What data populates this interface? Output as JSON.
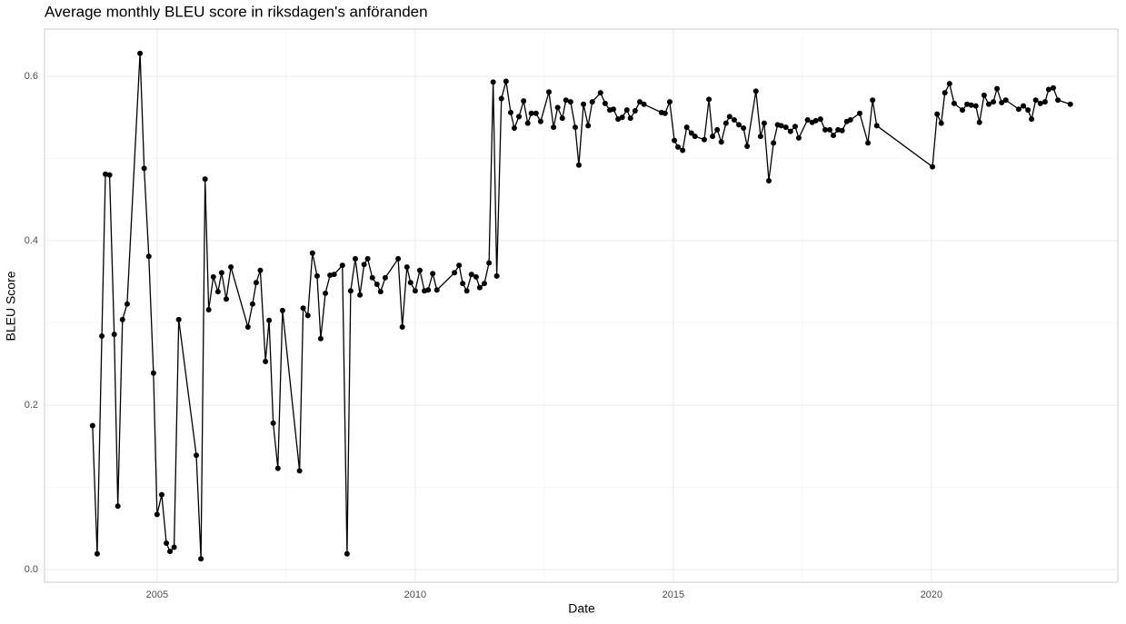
{
  "chart_data": {
    "type": "line",
    "title": "Average monthly BLEU score in riksdagen's anföranden",
    "xlabel": "Date",
    "ylabel": "BLEU Score",
    "color": "#000000",
    "grid": true,
    "xlim": [
      2002.82,
      2023.61
    ],
    "ylim": [
      -0.0155,
      0.6575
    ],
    "xticks": [
      2005,
      2010,
      2015,
      2020
    ],
    "yticks": [
      {
        "value": 0,
        "label": "0.0"
      },
      0.2,
      0.4,
      0.6
    ],
    "x": [
      2003.75,
      2003.84,
      2003.93,
      2004.0,
      2004.08,
      2004.17,
      2004.24,
      2004.33,
      2004.42,
      2004.67,
      2004.75,
      2004.84,
      2004.93,
      2005.0,
      2005.09,
      2005.18,
      2005.25,
      2005.33,
      2005.42,
      2005.76,
      2005.85,
      2005.93,
      2006.0,
      2006.09,
      2006.18,
      2006.25,
      2006.34,
      2006.43,
      2006.76,
      2006.85,
      2006.92,
      2007.0,
      2007.1,
      2007.17,
      2007.25,
      2007.34,
      2007.43,
      2007.76,
      2007.83,
      2007.92,
      2008.01,
      2008.1,
      2008.17,
      2008.26,
      2008.35,
      2008.43,
      2008.59,
      2008.68,
      2008.75,
      2008.84,
      2008.93,
      2009.01,
      2009.08,
      2009.17,
      2009.26,
      2009.33,
      2009.42,
      2009.67,
      2009.75,
      2009.84,
      2009.91,
      2010.0,
      2010.09,
      2010.18,
      2010.25,
      2010.34,
      2010.42,
      2010.76,
      2010.85,
      2010.92,
      2011.0,
      2011.09,
      2011.18,
      2011.25,
      2011.34,
      2011.43,
      2011.51,
      2011.58,
      2011.67,
      2011.76,
      2011.85,
      2011.92,
      2012.01,
      2012.1,
      2012.18,
      2012.25,
      2012.34,
      2012.43,
      2012.59,
      2012.68,
      2012.76,
      2012.85,
      2012.92,
      2013.01,
      2013.1,
      2013.17,
      2013.26,
      2013.35,
      2013.43,
      2013.59,
      2013.68,
      2013.77,
      2013.84,
      2013.93,
      2014.01,
      2014.1,
      2014.17,
      2014.26,
      2014.35,
      2014.43,
      2014.77,
      2014.84,
      2014.93,
      2015.02,
      2015.09,
      2015.18,
      2015.26,
      2015.35,
      2015.42,
      2015.6,
      2015.69,
      2015.76,
      2015.85,
      2015.93,
      2016.02,
      2016.09,
      2016.18,
      2016.27,
      2016.36,
      2016.43,
      2016.6,
      2016.69,
      2016.76,
      2016.85,
      2016.94,
      2017.02,
      2017.09,
      2017.18,
      2017.27,
      2017.36,
      2017.43,
      2017.6,
      2017.69,
      2017.76,
      2017.85,
      2017.94,
      2018.03,
      2018.1,
      2018.19,
      2018.27,
      2018.36,
      2018.43,
      2018.61,
      2018.77,
      2018.86,
      2018.94,
      2020.02,
      2020.11,
      2020.19,
      2020.26,
      2020.35,
      2020.44,
      2020.6,
      2020.69,
      2020.77,
      2020.86,
      2020.93,
      2021.02,
      2021.11,
      2021.2,
      2021.27,
      2021.36,
      2021.44,
      2021.69,
      2021.78,
      2021.87,
      2021.94,
      2022.02,
      2022.11,
      2022.2,
      2022.27,
      2022.36,
      2022.45,
      2022.69
    ],
    "values": [
      0.175,
      0.019,
      0.284,
      0.481,
      0.48,
      0.286,
      0.077,
      0.304,
      0.323,
      0.628,
      0.488,
      0.381,
      0.239,
      0.067,
      0.091,
      0.032,
      0.022,
      0.027,
      0.304,
      0.139,
      0.013,
      0.475,
      0.316,
      0.356,
      0.338,
      0.361,
      0.329,
      0.368,
      0.295,
      0.323,
      0.349,
      0.364,
      0.253,
      0.303,
      0.178,
      0.123,
      0.315,
      0.12,
      0.318,
      0.309,
      0.385,
      0.357,
      0.281,
      0.336,
      0.358,
      0.359,
      0.37,
      0.019,
      0.339,
      0.378,
      0.334,
      0.371,
      0.378,
      0.355,
      0.347,
      0.338,
      0.355,
      0.378,
      0.295,
      0.368,
      0.349,
      0.339,
      0.364,
      0.339,
      0.34,
      0.36,
      0.34,
      0.361,
      0.37,
      0.348,
      0.339,
      0.359,
      0.356,
      0.343,
      0.348,
      0.373,
      0.593,
      0.357,
      0.573,
      0.594,
      0.556,
      0.537,
      0.551,
      0.57,
      0.543,
      0.555,
      0.555,
      0.545,
      0.581,
      0.538,
      0.562,
      0.549,
      0.571,
      0.569,
      0.538,
      0.492,
      0.566,
      0.54,
      0.569,
      0.58,
      0.567,
      0.559,
      0.56,
      0.548,
      0.55,
      0.559,
      0.549,
      0.558,
      0.569,
      0.566,
      0.556,
      0.555,
      0.569,
      0.522,
      0.514,
      0.51,
      0.538,
      0.531,
      0.527,
      0.523,
      0.572,
      0.527,
      0.535,
      0.52,
      0.543,
      0.551,
      0.547,
      0.541,
      0.537,
      0.515,
      0.582,
      0.527,
      0.543,
      0.473,
      0.519,
      0.541,
      0.54,
      0.538,
      0.533,
      0.539,
      0.525,
      0.547,
      0.544,
      0.546,
      0.548,
      0.535,
      0.535,
      0.528,
      0.535,
      0.534,
      0.545,
      0.547,
      0.555,
      0.519,
      0.571,
      0.54,
      0.49,
      0.554,
      0.543,
      0.58,
      0.591,
      0.567,
      0.559,
      0.566,
      0.565,
      0.564,
      0.544,
      0.577,
      0.566,
      0.569,
      0.585,
      0.568,
      0.571,
      0.56,
      0.564,
      0.559,
      0.548,
      0.571,
      0.567,
      0.569,
      0.584,
      0.586,
      0.571,
      0.566
    ]
  }
}
